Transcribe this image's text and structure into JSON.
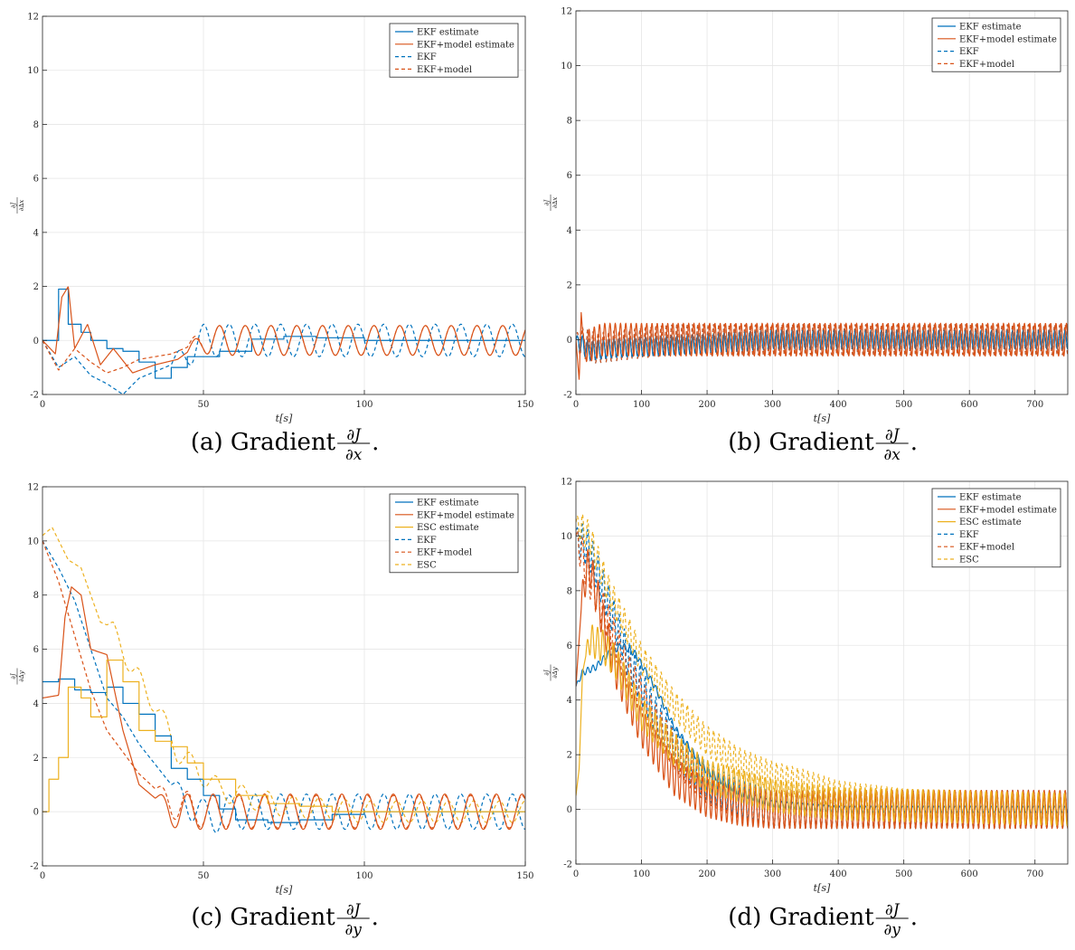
{
  "colors": {
    "ekf": "#0072BD",
    "ekf_model": "#D95319",
    "esc": "#EDB120"
  },
  "chart_data": [
    {
      "id": "a",
      "type": "line",
      "caption": {
        "tag": "(a)",
        "text": "Gradient",
        "num": "∂J",
        "den": "∂x",
        "tail": "."
      },
      "xlabel": "t[s]",
      "ylabel": {
        "num": "∂J",
        "den": "∂∆x"
      },
      "xlim": [
        0,
        150
      ],
      "ylim": [
        -2,
        12
      ],
      "xticks": [
        0,
        50,
        100,
        150
      ],
      "yticks": [
        -2,
        0,
        2,
        4,
        6,
        8,
        10,
        12
      ],
      "grid": true,
      "legend_position": "top-right",
      "legend": [
        "EKF estimate",
        "EKF+model estimate",
        "EKF",
        "EKF+model"
      ],
      "series": [
        {
          "name": "EKF estimate",
          "color_key": "ekf",
          "dash": false,
          "kind": "step",
          "x": [
            0,
            5,
            8,
            12,
            15,
            20,
            25,
            30,
            35,
            40,
            45,
            55,
            65,
            75,
            85,
            100,
            150
          ],
          "y": [
            0,
            1.9,
            0.6,
            0.3,
            0,
            -0.3,
            -0.4,
            -0.8,
            -1.4,
            -1.0,
            -0.6,
            -0.4,
            0.05,
            0.15,
            0.1,
            0,
            0
          ]
        },
        {
          "name": "EKF+model estimate",
          "color_key": "ekf_model",
          "dash": false,
          "kind": "osc",
          "x": [
            0,
            4,
            6,
            8,
            10,
            14,
            18,
            22,
            28,
            35,
            42,
            50,
            60,
            80,
            150
          ],
          "y": [
            0,
            -0.5,
            1.6,
            2.0,
            -0.3,
            0.6,
            -0.9,
            -0.3,
            -1.2,
            -0.9,
            -0.7,
            0,
            0,
            0,
            0
          ],
          "osc_amp": 0.55,
          "osc_start": 45,
          "osc_period": 8.0
        },
        {
          "name": "EKF",
          "color_key": "ekf",
          "dash": true,
          "kind": "osc",
          "x": [
            0,
            5,
            10,
            15,
            20,
            25,
            30,
            40,
            50,
            150
          ],
          "y": [
            0,
            -1.0,
            -0.6,
            -1.3,
            -1.6,
            -2.0,
            -1.4,
            -0.9,
            0,
            0
          ],
          "osc_amp": 0.6,
          "osc_start": 40,
          "osc_period": 8.0
        },
        {
          "name": "EKF+model",
          "color_key": "ekf_model",
          "dash": true,
          "kind": "osc",
          "x": [
            0,
            5,
            10,
            15,
            20,
            25,
            30,
            40,
            50,
            150
          ],
          "y": [
            0,
            -1.1,
            -0.3,
            -0.8,
            -1.2,
            -1.0,
            -0.7,
            -0.5,
            0,
            0
          ],
          "osc_amp": 0.55,
          "osc_start": 45,
          "osc_period": 8.0
        }
      ]
    },
    {
      "id": "b",
      "type": "line",
      "caption": {
        "tag": "(b)",
        "text": "Gradient",
        "num": "∂J",
        "den": "∂x",
        "tail": "."
      },
      "xlabel": "t[s]",
      "ylabel": {
        "num": "∂J",
        "den": "∂∆x"
      },
      "xlim": [
        0,
        750
      ],
      "ylim": [
        -2,
        12
      ],
      "xticks": [
        0,
        100,
        200,
        300,
        400,
        500,
        600,
        700
      ],
      "yticks": [
        -2,
        0,
        2,
        4,
        6,
        8,
        10,
        12
      ],
      "grid": true,
      "legend_position": "top-right",
      "legend": [
        "EKF estimate",
        "EKF+model estimate",
        "EKF",
        "EKF+model"
      ],
      "series": [
        {
          "name": "EKF estimate",
          "color_key": "ekf",
          "dash": false,
          "kind": "osc",
          "x": [
            0,
            20,
            60,
            150,
            300,
            750
          ],
          "y": [
            0,
            -0.4,
            -0.3,
            -0.2,
            0,
            0
          ],
          "osc_amp": 0.35,
          "osc_start": 0,
          "osc_period": 8.0
        },
        {
          "name": "EKF+model estimate",
          "color_key": "ekf_model",
          "dash": false,
          "kind": "osc",
          "x": [
            0,
            5,
            8,
            12,
            40,
            750
          ],
          "y": [
            0,
            -1.5,
            1.0,
            -0.3,
            0,
            0
          ],
          "osc_amp": 0.6,
          "osc_start": 10,
          "osc_period": 8.0
        },
        {
          "name": "EKF",
          "color_key": "ekf",
          "dash": true,
          "kind": "osc",
          "x": [
            0,
            30,
            150,
            750
          ],
          "y": [
            0,
            -0.3,
            0,
            0
          ],
          "osc_amp": 0.55,
          "osc_start": 0,
          "osc_period": 8.0
        },
        {
          "name": "EKF+model",
          "color_key": "ekf_model",
          "dash": true,
          "kind": "osc",
          "x": [
            0,
            30,
            150,
            750
          ],
          "y": [
            0,
            -0.3,
            0,
            0
          ],
          "osc_amp": 0.55,
          "osc_start": 0,
          "osc_period": 8.0
        }
      ]
    },
    {
      "id": "c",
      "type": "line",
      "caption": {
        "tag": "(c)",
        "text": "Gradient",
        "num": "∂J",
        "den": "∂y",
        "tail": "."
      },
      "xlabel": "t[s]",
      "ylabel": {
        "num": "∂J",
        "den": "∂∆y"
      },
      "xlim": [
        0,
        150
      ],
      "ylim": [
        -2,
        12
      ],
      "xticks": [
        0,
        50,
        100,
        150
      ],
      "yticks": [
        -2,
        0,
        2,
        4,
        6,
        8,
        10,
        12
      ],
      "grid": true,
      "legend_position": "top-right",
      "legend": [
        "EKF estimate",
        "EKF+model estimate",
        "ESC estimate",
        "EKF",
        "EKF+model",
        "ESC"
      ],
      "series": [
        {
          "name": "EKF estimate",
          "color_key": "ekf",
          "dash": false,
          "kind": "step",
          "x": [
            0,
            5,
            10,
            15,
            20,
            25,
            30,
            35,
            40,
            45,
            50,
            55,
            60,
            70,
            80,
            90,
            100,
            150
          ],
          "y": [
            4.8,
            4.9,
            4.5,
            4.4,
            4.6,
            4.0,
            3.6,
            2.8,
            1.6,
            1.2,
            0.6,
            0.1,
            -0.3,
            -0.4,
            -0.3,
            -0.1,
            0,
            0
          ]
        },
        {
          "name": "EKF+model estimate",
          "color_key": "ekf_model",
          "dash": false,
          "kind": "osc",
          "x": [
            0,
            5,
            7,
            9,
            12,
            15,
            20,
            25,
            30,
            40,
            50,
            150
          ],
          "y": [
            4.2,
            4.3,
            7.2,
            8.3,
            8.0,
            6.0,
            5.8,
            3.0,
            1.0,
            0,
            0,
            0
          ],
          "osc_amp": 0.65,
          "osc_start": 35,
          "osc_period": 8.0
        },
        {
          "name": "ESC estimate",
          "color_key": "esc",
          "dash": false,
          "kind": "step",
          "x": [
            0,
            2,
            5,
            8,
            12,
            15,
            20,
            25,
            30,
            35,
            40,
            45,
            50,
            60,
            70,
            80,
            90,
            150
          ],
          "y": [
            0,
            1.2,
            2.0,
            4.6,
            4.2,
            3.5,
            5.6,
            4.8,
            3.0,
            2.6,
            2.4,
            1.8,
            1.2,
            0.6,
            0.3,
            0.2,
            0,
            0
          ]
        },
        {
          "name": "EKF",
          "color_key": "ekf",
          "dash": true,
          "kind": "osc",
          "x": [
            0,
            5,
            10,
            15,
            20,
            25,
            30,
            40,
            50,
            60,
            150
          ],
          "y": [
            10.0,
            9.0,
            7.8,
            6.0,
            4.2,
            3.5,
            2.5,
            1.0,
            -0.2,
            0,
            0
          ],
          "osc_amp": 0.65,
          "osc_start": 40,
          "osc_period": 8.0
        },
        {
          "name": "EKF+model",
          "color_key": "ekf_model",
          "dash": true,
          "kind": "osc",
          "x": [
            0,
            5,
            10,
            15,
            20,
            25,
            30,
            40,
            50,
            150
          ],
          "y": [
            10.0,
            8.5,
            6.5,
            4.5,
            3.0,
            2.2,
            1.4,
            0.3,
            0,
            0
          ],
          "osc_amp": 0.6,
          "osc_start": 35,
          "osc_period": 8.0
        },
        {
          "name": "ESC",
          "color_key": "esc",
          "dash": true,
          "kind": "osc",
          "x": [
            0,
            3,
            8,
            12,
            18,
            22,
            28,
            35,
            42,
            55,
            75,
            100,
            150
          ],
          "y": [
            10.2,
            10.5,
            9.3,
            9.0,
            7.0,
            6.8,
            5.2,
            4.0,
            2.2,
            0.8,
            0.2,
            0,
            0
          ],
          "osc_amp": 0.4,
          "osc_start": 20,
          "osc_period": 8.0
        }
      ]
    },
    {
      "id": "d",
      "type": "line",
      "caption": {
        "tag": "(d)",
        "text": "Gradient",
        "num": "∂J",
        "den": "∂y",
        "tail": "."
      },
      "xlabel": "t[s]",
      "ylabel": {
        "num": "∂J",
        "den": "∂∆y"
      },
      "xlim": [
        0,
        750
      ],
      "ylim": [
        -2,
        12
      ],
      "xticks": [
        0,
        100,
        200,
        300,
        400,
        500,
        600,
        700
      ],
      "yticks": [
        -2,
        0,
        2,
        4,
        6,
        8,
        10,
        12
      ],
      "grid": true,
      "legend_position": "top-right",
      "legend": [
        "EKF estimate",
        "EKF+model estimate",
        "ESC estimate",
        "EKF",
        "EKF+model",
        "ESC"
      ],
      "series": [
        {
          "name": "EKF estimate",
          "color_key": "ekf",
          "dash": false,
          "kind": "osc",
          "x": [
            0,
            10,
            30,
            50,
            70,
            90,
            120,
            150,
            200,
            250,
            300,
            400,
            750
          ],
          "y": [
            4.5,
            5.0,
            5.2,
            5.7,
            6.0,
            5.7,
            4.5,
            3.0,
            1.4,
            0.6,
            0.2,
            0,
            0
          ],
          "osc_amp": 0.12,
          "osc_start": 0,
          "osc_period": 8.0
        },
        {
          "name": "EKF+model estimate",
          "color_key": "ekf_model",
          "dash": false,
          "kind": "osc",
          "x": [
            0,
            10,
            20,
            40,
            60,
            100,
            150,
            200,
            250,
            300,
            750
          ],
          "y": [
            4.5,
            8.0,
            9.0,
            7.0,
            5.2,
            3.0,
            1.2,
            0.4,
            0.1,
            0,
            0
          ],
          "osc_amp": 0.7,
          "osc_start": 8,
          "osc_period": 8.0
        },
        {
          "name": "ESC estimate",
          "color_key": "esc",
          "dash": false,
          "kind": "osc",
          "x": [
            0,
            5,
            10,
            20,
            40,
            60,
            100,
            150,
            200,
            300,
            400,
            750
          ],
          "y": [
            0.5,
            1.5,
            5.0,
            6.2,
            6.0,
            5.4,
            3.5,
            2.2,
            1.2,
            0.5,
            0.2,
            0
          ],
          "osc_amp": 0.6,
          "osc_start": 15,
          "osc_period": 8.0
        },
        {
          "name": "EKF",
          "color_key": "ekf",
          "dash": true,
          "kind": "osc",
          "x": [
            0,
            20,
            50,
            80,
            120,
            160,
            200,
            250,
            300,
            750
          ],
          "y": [
            10.0,
            9.5,
            7.5,
            5.5,
            3.5,
            2.0,
            1.0,
            0.4,
            0,
            0
          ],
          "osc_amp": 0.7,
          "osc_start": 0,
          "osc_period": 8.0
        },
        {
          "name": "EKF+model",
          "color_key": "ekf_model",
          "dash": true,
          "kind": "osc",
          "x": [
            0,
            20,
            50,
            80,
            120,
            160,
            200,
            250,
            300,
            750
          ],
          "y": [
            10.0,
            8.5,
            6.8,
            5.0,
            3.2,
            1.8,
            0.9,
            0.3,
            0,
            0
          ],
          "osc_amp": 0.7,
          "osc_start": 0,
          "osc_period": 8.0
        },
        {
          "name": "ESC",
          "color_key": "esc",
          "dash": true,
          "kind": "osc",
          "x": [
            0,
            20,
            50,
            100,
            150,
            200,
            250,
            300,
            350,
            400,
            500,
            750
          ],
          "y": [
            10.5,
            10.0,
            8.0,
            5.5,
            3.8,
            2.5,
            1.7,
            1.2,
            0.9,
            0.5,
            0.2,
            0
          ],
          "osc_amp": 0.55,
          "osc_start": 0,
          "osc_period": 8.0
        }
      ]
    }
  ]
}
